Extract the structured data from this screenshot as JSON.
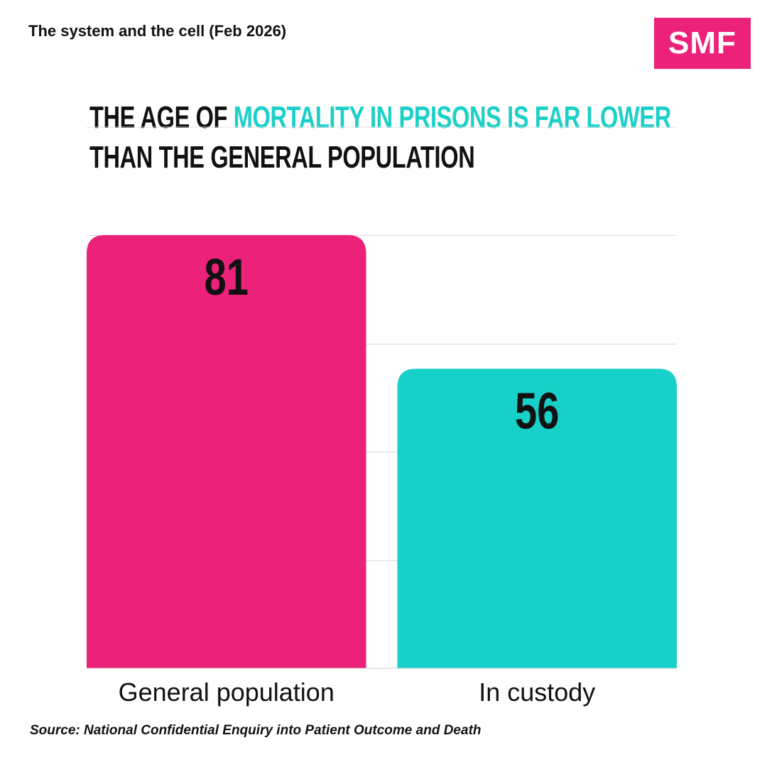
{
  "header": {
    "kicker": "The system and the cell (Feb 2026)",
    "logo_text": "SMF"
  },
  "headline": {
    "part1": "The age of ",
    "highlight": "mortality in prisons is far lower",
    "part2": "than the general population"
  },
  "chart_data": {
    "type": "bar",
    "title": "The age of mortality in prisons is far lower than the general population",
    "categories": [
      "General population",
      "In custody"
    ],
    "values": [
      81,
      56
    ],
    "data_labels": [
      "81",
      "56"
    ],
    "colors": [
      "#ec227a",
      "#17d1c9"
    ],
    "xlabel": "",
    "ylabel": "",
    "ylim": [
      0,
      81
    ],
    "grid": true,
    "gridline_values": [
      20.25,
      40.5,
      60.75,
      81
    ]
  },
  "source": "Source: National Confidential Enquiry into Patient Outcome and Death",
  "colors": {
    "brand_pink": "#ec227a",
    "accent_teal": "#1bd0c8",
    "gridline": "#d9d9d9",
    "text": "#111111"
  }
}
